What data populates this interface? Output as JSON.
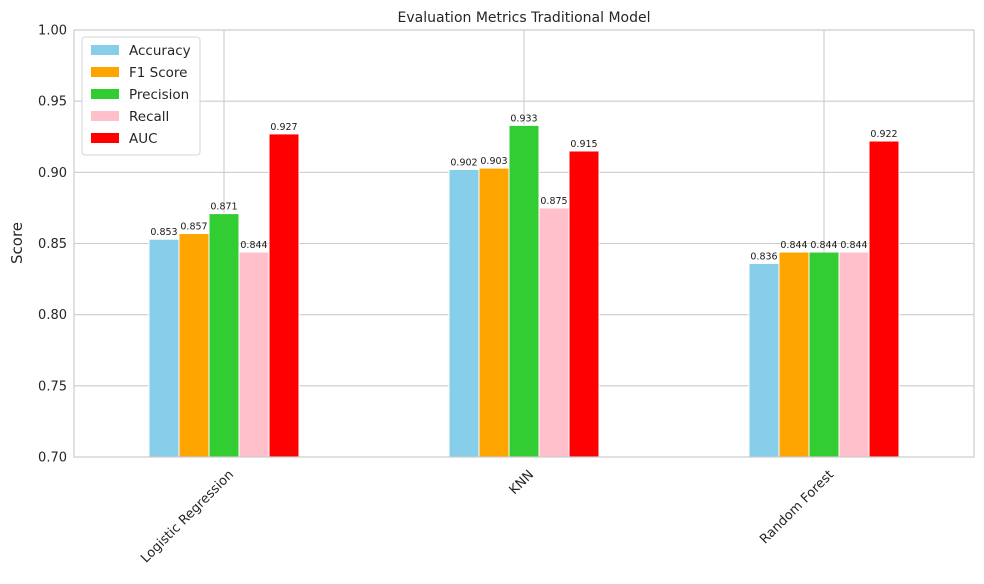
{
  "chart_data": {
    "type": "bar",
    "title": "Evaluation Metrics Traditional Model",
    "xlabel": "",
    "ylabel": "Score",
    "ylim": [
      0.7,
      1.0
    ],
    "yticks": [
      "0.70",
      "0.75",
      "0.80",
      "0.85",
      "0.90",
      "0.95",
      "1.00"
    ],
    "grid": true,
    "legend_position": "top-left",
    "categories": [
      "Logistic Regression",
      "KNN",
      "Random Forest"
    ],
    "series": [
      {
        "name": "Accuracy",
        "color": "#87CEEB",
        "values": [
          0.853,
          0.902,
          0.836
        ],
        "labels": [
          "0.853",
          "0.902",
          "0.836"
        ]
      },
      {
        "name": "F1 Score",
        "color": "#FFA500",
        "values": [
          0.857,
          0.903,
          0.844
        ],
        "labels": [
          "0.857",
          "0.903",
          "0.844"
        ]
      },
      {
        "name": "Precision",
        "color": "#32CD32",
        "values": [
          0.871,
          0.933,
          0.844
        ],
        "labels": [
          "0.871",
          "0.933",
          "0.844"
        ]
      },
      {
        "name": "Recall",
        "color": "#FFC0CB",
        "values": [
          0.844,
          0.875,
          0.844
        ],
        "labels": [
          "0.844",
          "0.875",
          "0.844"
        ]
      },
      {
        "name": "AUC",
        "color": "#FF0000",
        "values": [
          0.927,
          0.915,
          0.922
        ],
        "labels": [
          "0.927",
          "0.915",
          "0.922"
        ]
      }
    ]
  }
}
